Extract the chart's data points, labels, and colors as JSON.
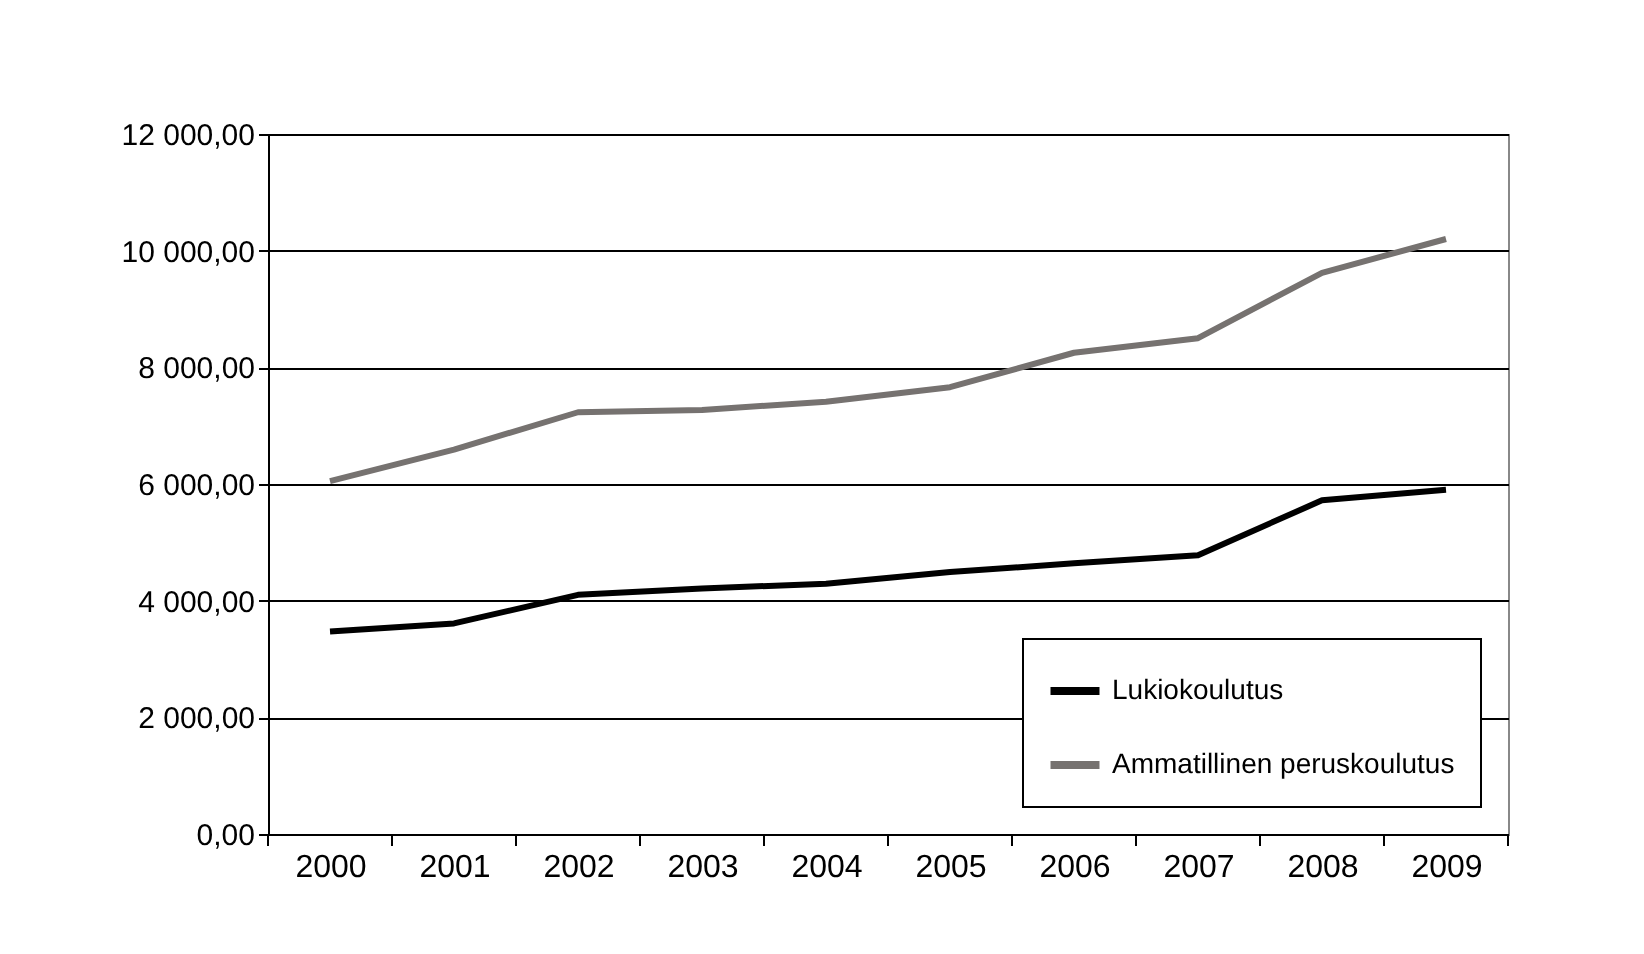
{
  "chart_data": {
    "type": "line",
    "categories": [
      "2000",
      "2001",
      "2002",
      "2003",
      "2004",
      "2005",
      "2006",
      "2007",
      "2008",
      "2009"
    ],
    "series": [
      {
        "name": "Lukiokoulutus",
        "color": "#000000",
        "values": [
          3470,
          3610,
          4100,
          4210,
          4290,
          4490,
          4640,
          4780,
          5720,
          5900
        ]
      },
      {
        "name": "Ammatillinen peruskoulutus",
        "color": "#767270",
        "values": [
          6050,
          6590,
          7230,
          7270,
          7410,
          7660,
          8250,
          8500,
          9620,
          10200
        ]
      }
    ],
    "ylim": [
      0,
      12000
    ],
    "yticks": [
      {
        "value": 0,
        "label": "0,00"
      },
      {
        "value": 2000,
        "label": "2 000,00"
      },
      {
        "value": 4000,
        "label": "4 000,00"
      },
      {
        "value": 6000,
        "label": "6 000,00"
      },
      {
        "value": 8000,
        "label": "8 000,00"
      },
      {
        "value": 10000,
        "label": "10 000,00"
      },
      {
        "value": 12000,
        "label": "12 000,00"
      }
    ],
    "grid": "y",
    "legend": "bottom right",
    "marker": "none",
    "line_style": "solid"
  }
}
